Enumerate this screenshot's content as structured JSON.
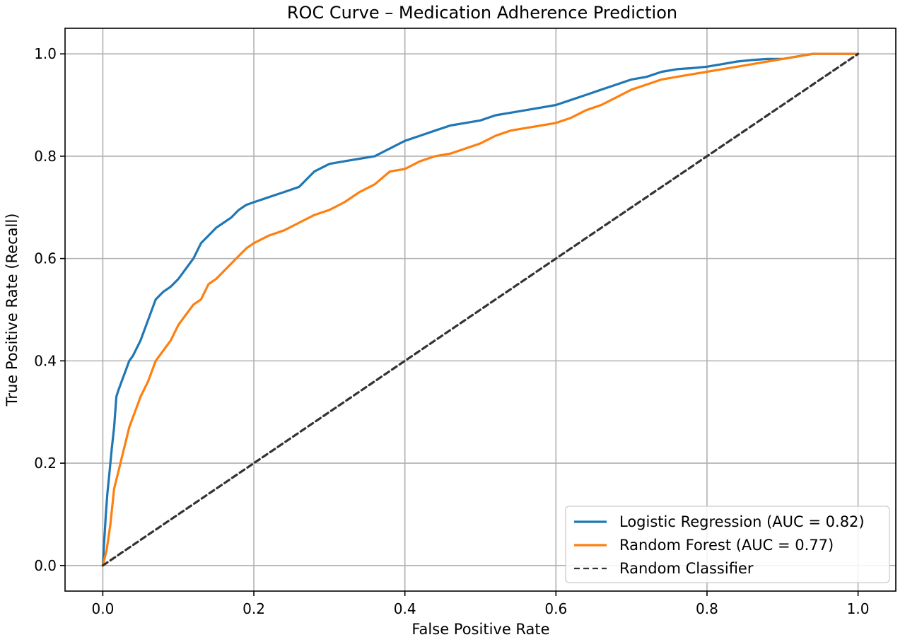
{
  "chart_data": {
    "type": "line",
    "title": "ROC Curve – Medication Adherence Prediction",
    "xlabel": "False Positive Rate",
    "ylabel": "True Positive Rate (Recall)",
    "xlim": [
      -0.05,
      1.05
    ],
    "ylim": [
      -0.05,
      1.05
    ],
    "xticks": [
      "0.0",
      "0.2",
      "0.4",
      "0.6",
      "0.8",
      "1.0"
    ],
    "yticks": [
      "0.0",
      "0.2",
      "0.4",
      "0.6",
      "0.8",
      "1.0"
    ],
    "grid": true,
    "legend_position": "lower-right",
    "series": [
      {
        "name": "Logistic Regression (AUC = 0.82)",
        "color": "#1f77b4",
        "style": "solid",
        "x": [
          0.0,
          0.002,
          0.004,
          0.006,
          0.008,
          0.01,
          0.012,
          0.015,
          0.018,
          0.02,
          0.025,
          0.03,
          0.035,
          0.04,
          0.05,
          0.06,
          0.07,
          0.08,
          0.09,
          0.1,
          0.11,
          0.12,
          0.13,
          0.14,
          0.15,
          0.16,
          0.17,
          0.18,
          0.19,
          0.2,
          0.22,
          0.24,
          0.26,
          0.28,
          0.3,
          0.32,
          0.34,
          0.36,
          0.38,
          0.4,
          0.42,
          0.44,
          0.46,
          0.48,
          0.5,
          0.52,
          0.54,
          0.56,
          0.58,
          0.6,
          0.62,
          0.64,
          0.66,
          0.68,
          0.7,
          0.72,
          0.74,
          0.76,
          0.78,
          0.8,
          0.82,
          0.84,
          0.86,
          0.88,
          0.9,
          0.92,
          0.94,
          0.96,
          0.98,
          1.0
        ],
        "y": [
          0.0,
          0.05,
          0.1,
          0.14,
          0.17,
          0.2,
          0.23,
          0.27,
          0.33,
          0.34,
          0.36,
          0.38,
          0.4,
          0.41,
          0.44,
          0.48,
          0.52,
          0.535,
          0.545,
          0.56,
          0.58,
          0.6,
          0.63,
          0.645,
          0.66,
          0.67,
          0.68,
          0.695,
          0.705,
          0.71,
          0.72,
          0.73,
          0.74,
          0.77,
          0.785,
          0.79,
          0.795,
          0.8,
          0.815,
          0.83,
          0.84,
          0.85,
          0.86,
          0.865,
          0.87,
          0.88,
          0.885,
          0.89,
          0.895,
          0.9,
          0.91,
          0.92,
          0.93,
          0.94,
          0.95,
          0.955,
          0.965,
          0.97,
          0.972,
          0.975,
          0.98,
          0.985,
          0.988,
          0.99,
          0.99,
          0.995,
          1.0,
          1.0,
          1.0,
          1.0
        ]
      },
      {
        "name": "Random Forest (AUC = 0.77)",
        "color": "#ff7f0e",
        "style": "solid",
        "x": [
          0.0,
          0.005,
          0.01,
          0.015,
          0.02,
          0.025,
          0.03,
          0.035,
          0.04,
          0.045,
          0.05,
          0.06,
          0.07,
          0.08,
          0.09,
          0.1,
          0.11,
          0.12,
          0.13,
          0.14,
          0.15,
          0.16,
          0.17,
          0.18,
          0.19,
          0.2,
          0.22,
          0.24,
          0.26,
          0.28,
          0.3,
          0.32,
          0.34,
          0.36,
          0.38,
          0.4,
          0.42,
          0.44,
          0.46,
          0.48,
          0.5,
          0.52,
          0.54,
          0.56,
          0.58,
          0.6,
          0.62,
          0.64,
          0.66,
          0.68,
          0.7,
          0.72,
          0.74,
          0.76,
          0.78,
          0.8,
          0.82,
          0.84,
          0.86,
          0.88,
          0.9,
          0.92,
          0.94,
          0.96,
          0.98,
          1.0
        ],
        "y": [
          0.0,
          0.03,
          0.08,
          0.15,
          0.18,
          0.21,
          0.24,
          0.27,
          0.29,
          0.31,
          0.33,
          0.36,
          0.4,
          0.42,
          0.44,
          0.47,
          0.49,
          0.51,
          0.52,
          0.55,
          0.56,
          0.575,
          0.59,
          0.605,
          0.62,
          0.63,
          0.645,
          0.655,
          0.67,
          0.685,
          0.695,
          0.71,
          0.73,
          0.745,
          0.77,
          0.775,
          0.79,
          0.8,
          0.805,
          0.815,
          0.825,
          0.84,
          0.85,
          0.855,
          0.86,
          0.865,
          0.875,
          0.89,
          0.9,
          0.915,
          0.93,
          0.94,
          0.95,
          0.955,
          0.96,
          0.965,
          0.97,
          0.975,
          0.98,
          0.985,
          0.99,
          0.995,
          1.0,
          1.0,
          1.0,
          1.0
        ]
      },
      {
        "name": "Random Classifier",
        "color": "#333333",
        "style": "dashed",
        "x": [
          0.0,
          1.0
        ],
        "y": [
          0.0,
          1.0
        ]
      }
    ]
  }
}
